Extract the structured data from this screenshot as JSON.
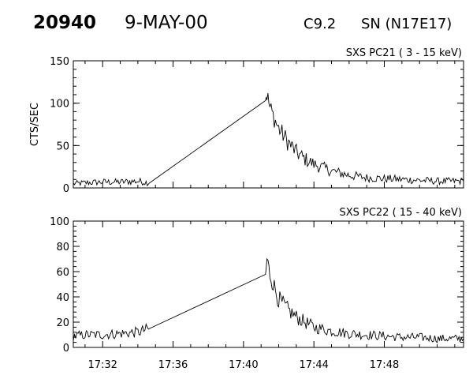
{
  "header": {
    "event_id": "20940",
    "date": "9-MAY-00",
    "flare_class": "C9.2",
    "location": "SN (N17E17)"
  },
  "chart_data": [
    {
      "type": "line",
      "panel_label": "SXS PC21  (  3 - 15 keV)",
      "ylabel": "CTS/SEC",
      "xlabel": "",
      "ylim": [
        0,
        150
      ],
      "yticks": [
        0,
        50,
        100,
        150
      ],
      "xlim": [
        "17:30:20",
        "17:52:30"
      ],
      "xticks": [
        "17:32",
        "17:36",
        "17:40",
        "17:44",
        "17:48"
      ],
      "x_unit": "UT (hh:mm)",
      "grid": false,
      "series": [
        {
          "x": [
            "17:30:20",
            "17:31:00",
            "17:32:00",
            "17:33:00",
            "17:34:00",
            "17:34:40",
            "17:41:15",
            "17:41:20",
            "17:41:30",
            "17:41:45",
            "17:42:00",
            "17:42:30",
            "17:43:00",
            "17:43:30",
            "17:44:00",
            "17:45:00",
            "17:46:00",
            "17:47:00",
            "17:48:00",
            "17:49:00",
            "17:50:00",
            "17:51:00",
            "17:52:30"
          ],
          "values": [
            5,
            6,
            7,
            7,
            8,
            6,
            108,
            110,
            95,
            82,
            70,
            55,
            42,
            34,
            28,
            20,
            15,
            12,
            11,
            10,
            9,
            8,
            8
          ]
        }
      ]
    },
    {
      "type": "line",
      "panel_label": "SXS PC22  ( 15 - 40 keV)",
      "ylabel": "",
      "xlabel": "",
      "ylim": [
        0,
        100
      ],
      "yticks": [
        0,
        20,
        40,
        60,
        80,
        100
      ],
      "xlim": [
        "17:30:20",
        "17:52:30"
      ],
      "xticks": [
        "17:32",
        "17:36",
        "17:40",
        "17:44",
        "17:48"
      ],
      "x_unit": "UT (hh:mm)",
      "grid": false,
      "series": [
        {
          "x": [
            "17:30:20",
            "17:31:00",
            "17:32:00",
            "17:33:00",
            "17:34:00",
            "17:34:40",
            "17:41:15",
            "17:41:20",
            "17:41:30",
            "17:41:45",
            "17:42:00",
            "17:42:30",
            "17:43:00",
            "17:43:30",
            "17:44:00",
            "17:45:00",
            "17:46:00",
            "17:47:00",
            "17:48:00",
            "17:49:00",
            "17:50:00",
            "17:51:00",
            "17:52:30"
          ],
          "values": [
            9,
            10,
            10,
            11,
            12,
            15,
            55,
            70,
            58,
            48,
            38,
            30,
            24,
            20,
            16,
            13,
            11,
            10,
            9,
            8,
            8,
            7,
            7
          ]
        }
      ]
    }
  ]
}
